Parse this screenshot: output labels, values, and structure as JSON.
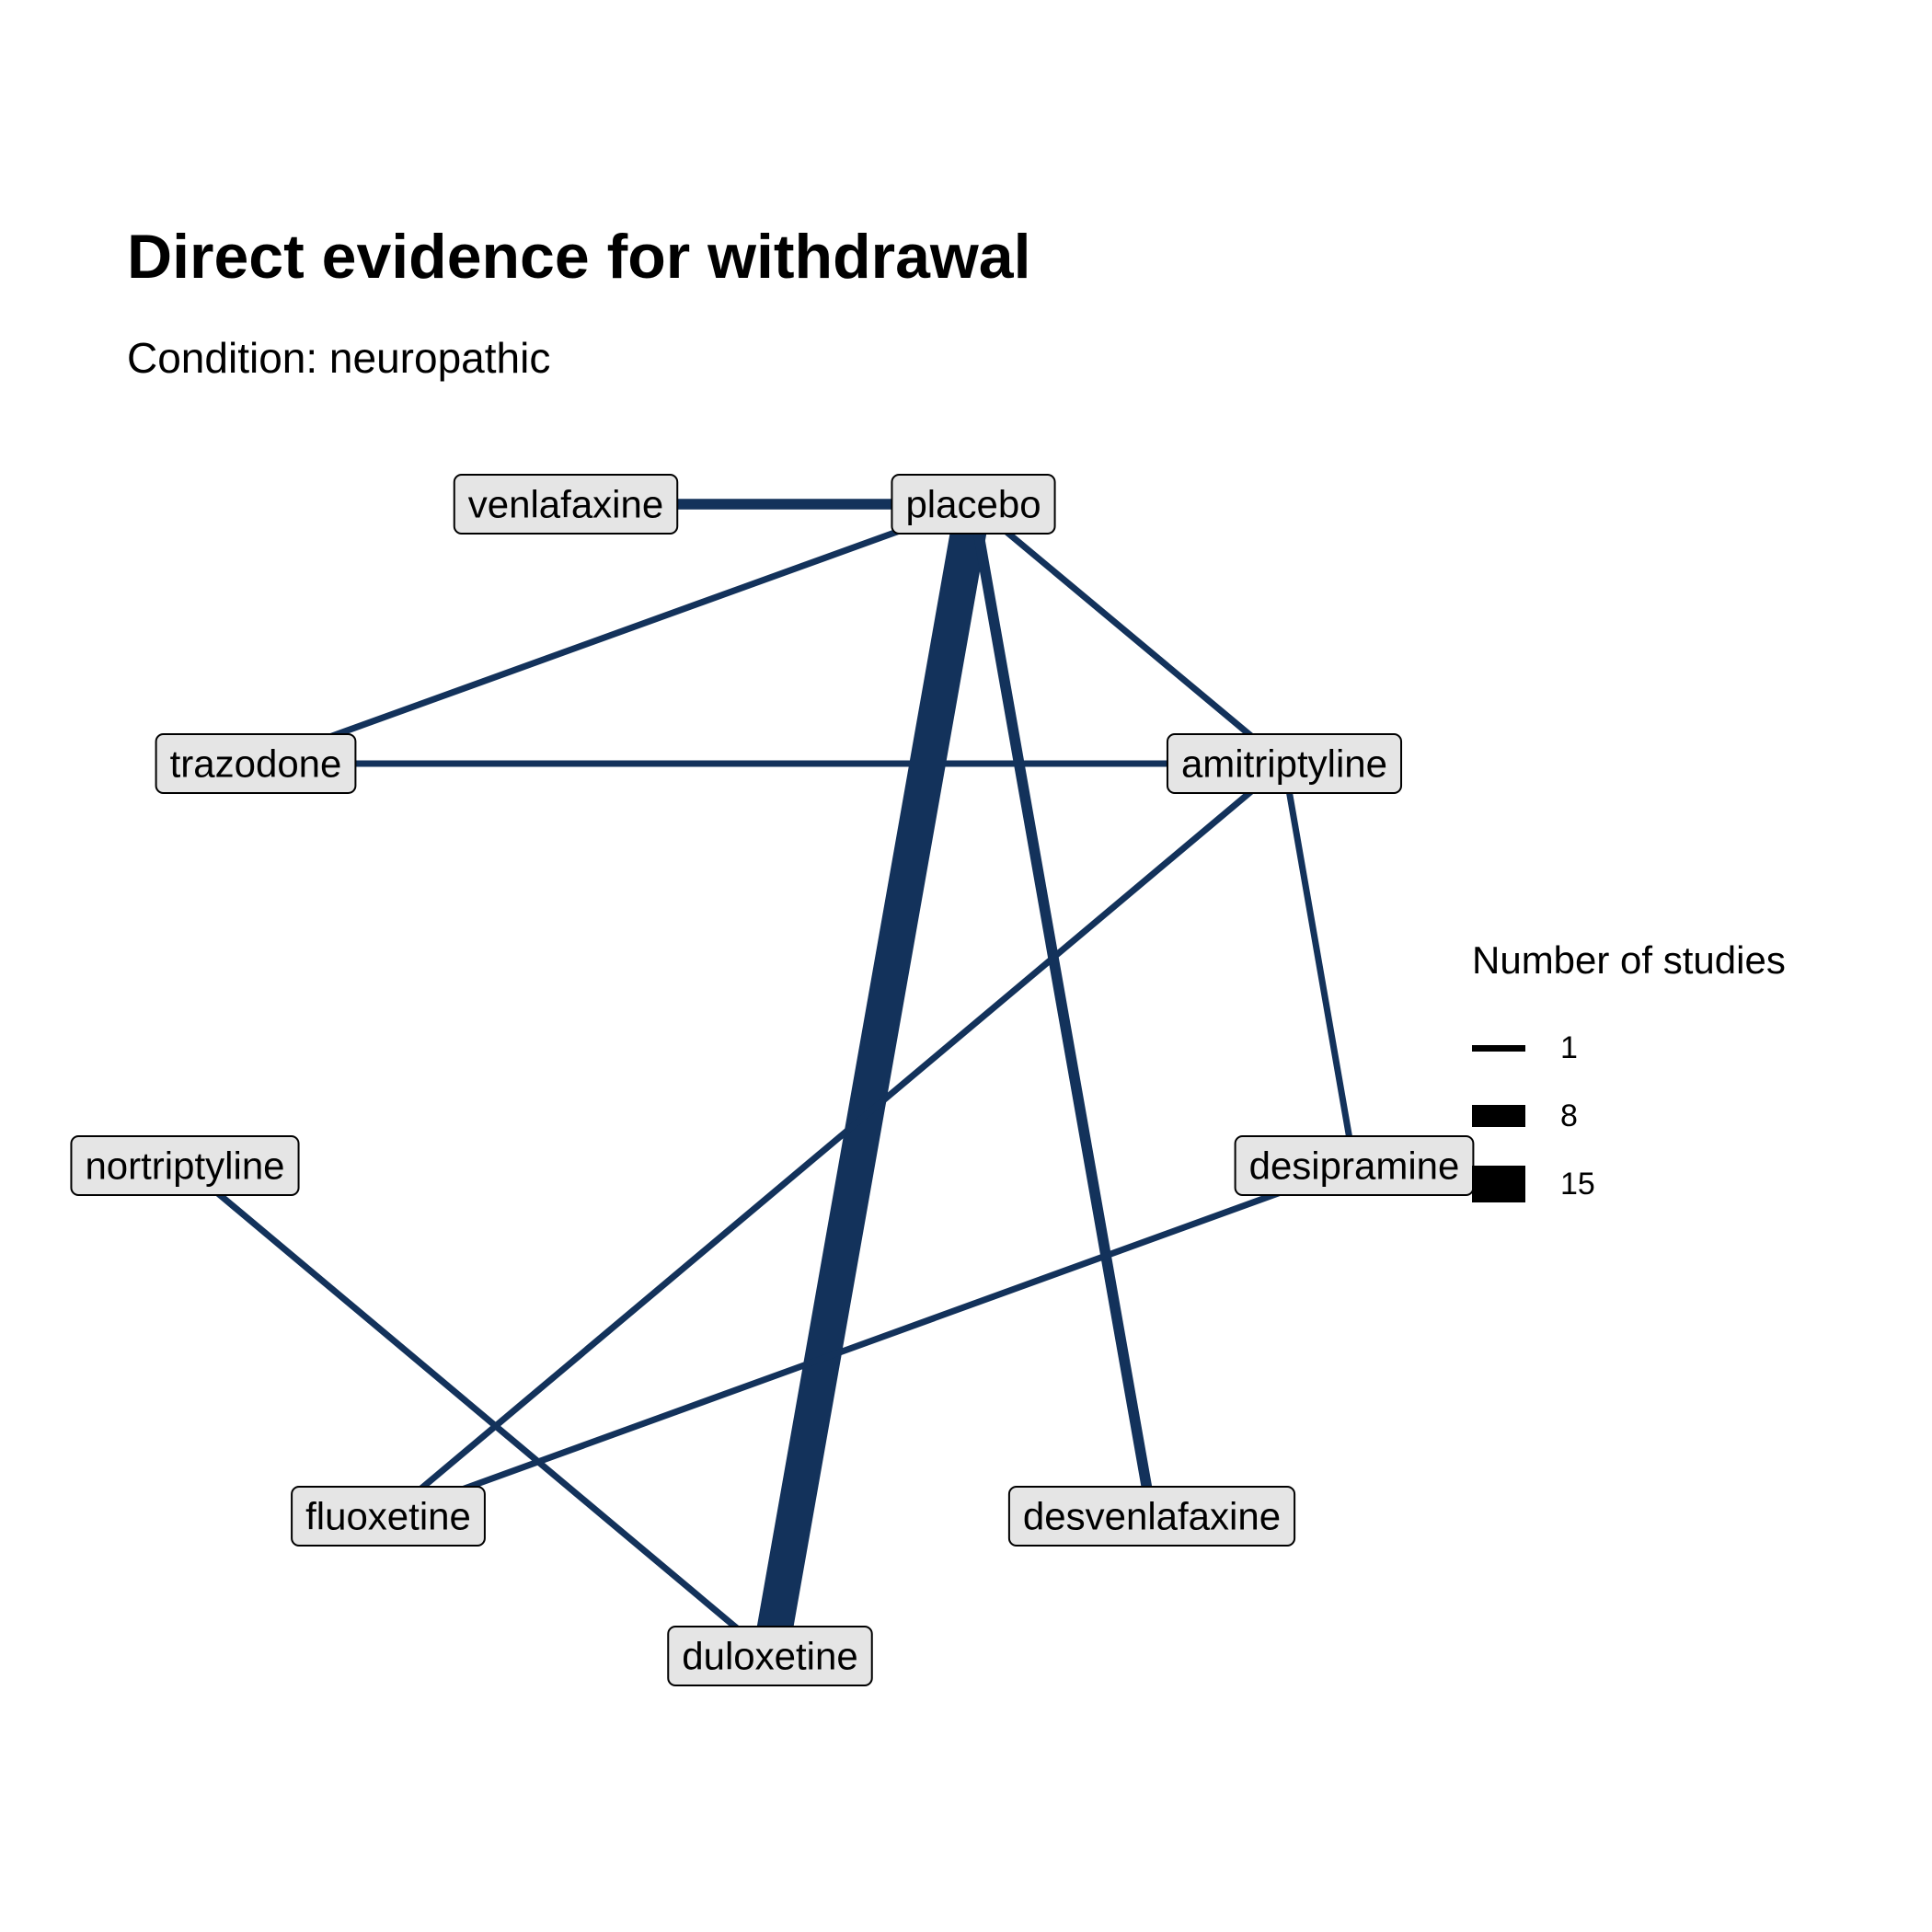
{
  "title": "Direct evidence for withdrawal",
  "subtitle": "Condition: neuropathic",
  "colors": {
    "edge": "#13325b",
    "node_fill": "#e5e5e5",
    "node_border": "#000000",
    "legend_key": "#000000"
  },
  "nodes": [
    {
      "id": "venlafaxine",
      "label": "venlafaxine"
    },
    {
      "id": "placebo",
      "label": "placebo"
    },
    {
      "id": "trazodone",
      "label": "trazodone"
    },
    {
      "id": "amitriptyline",
      "label": "amitriptyline"
    },
    {
      "id": "nortriptyline",
      "label": "nortriptyline"
    },
    {
      "id": "desipramine",
      "label": "desipramine"
    },
    {
      "id": "fluoxetine",
      "label": "fluoxetine"
    },
    {
      "id": "desvenlafaxine",
      "label": "desvenlafaxine"
    },
    {
      "id": "duloxetine",
      "label": "duloxetine"
    }
  ],
  "edges": [
    {
      "from": "placebo",
      "to": "duloxetine",
      "studies": 15
    },
    {
      "from": "placebo",
      "to": "desvenlafaxine",
      "studies": 3
    },
    {
      "from": "venlafaxine",
      "to": "placebo",
      "studies": 3
    },
    {
      "from": "placebo",
      "to": "trazodone",
      "studies": 1
    },
    {
      "from": "placebo",
      "to": "amitriptyline",
      "studies": 1
    },
    {
      "from": "trazodone",
      "to": "amitriptyline",
      "studies": 1
    },
    {
      "from": "amitriptyline",
      "to": "fluoxetine",
      "studies": 1
    },
    {
      "from": "amitriptyline",
      "to": "desipramine",
      "studies": 1
    },
    {
      "from": "desipramine",
      "to": "fluoxetine",
      "studies": 1
    },
    {
      "from": "nortriptyline",
      "to": "duloxetine",
      "studies": 1
    }
  ],
  "legend": {
    "title": "Number of studies",
    "items": [
      {
        "label": "1",
        "value": 1
      },
      {
        "label": "8",
        "value": 8
      },
      {
        "label": "15",
        "value": 15
      }
    ]
  }
}
